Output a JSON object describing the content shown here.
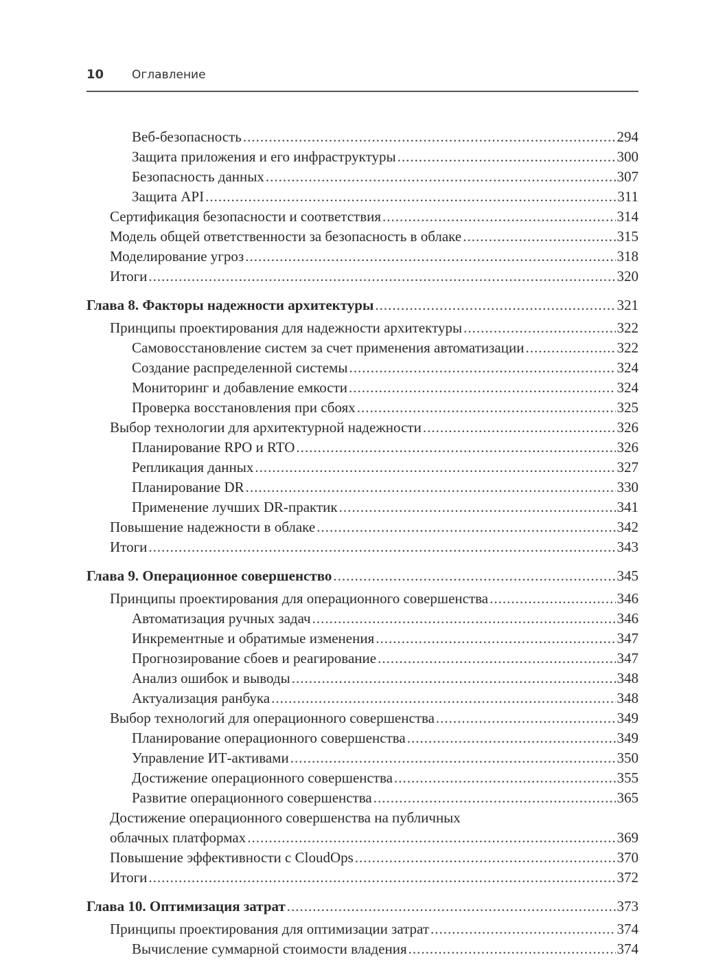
{
  "header": {
    "page_number": "10",
    "title": "Оглавление"
  },
  "entries": [
    {
      "level": 2,
      "title": "Веб-безопасность",
      "page": "294"
    },
    {
      "level": 2,
      "title": "Защита приложения и его инфраструктуры",
      "page": "300"
    },
    {
      "level": 2,
      "title": "Безопасность данных",
      "page": "307"
    },
    {
      "level": 2,
      "title": "Защита API",
      "page": "311"
    },
    {
      "level": 1,
      "title": "Сертификация безопасности и соответствия",
      "page": "314"
    },
    {
      "level": 1,
      "title": "Модель общей ответственности за безопасность в облаке",
      "page": "315"
    },
    {
      "level": 1,
      "title": "Моделирование угроз",
      "page": "318"
    },
    {
      "level": 1,
      "title": "Итоги",
      "page": "320"
    },
    {
      "level": 0,
      "title": "Глава 8. Факторы надежности архитектуры",
      "page": "321"
    },
    {
      "level": 1,
      "title": "Принципы проектирования для надежности архитектуры",
      "page": "322"
    },
    {
      "level": 2,
      "title": "Самовосстановление систем за счет применения автоматизации",
      "page": "322"
    },
    {
      "level": 2,
      "title": "Создание распределенной системы",
      "page": "324"
    },
    {
      "level": 2,
      "title": "Мониторинг и добавление емкости",
      "page": "324"
    },
    {
      "level": 2,
      "title": "Проверка восстановления при сбоях",
      "page": "325"
    },
    {
      "level": 1,
      "title": "Выбор технологии для архитектурной надежности",
      "page": "326"
    },
    {
      "level": 2,
      "title": "Планирование RPO и RTO",
      "page": "326"
    },
    {
      "level": 2,
      "title": "Репликация данных",
      "page": "327"
    },
    {
      "level": 2,
      "title": "Планирование DR",
      "page": "330"
    },
    {
      "level": 2,
      "title": "Применение лучших DR-практик",
      "page": "341"
    },
    {
      "level": 1,
      "title": "Повышение надежности в облаке",
      "page": "342"
    },
    {
      "level": 1,
      "title": "Итоги",
      "page": "343"
    },
    {
      "level": 0,
      "title": "Глава 9. Операционное совершенство",
      "page": "345"
    },
    {
      "level": 1,
      "title": "Принципы проектирования для операционного совершенства",
      "page": "346"
    },
    {
      "level": 2,
      "title": "Автоматизация ручных задач",
      "page": "346"
    },
    {
      "level": 2,
      "title": "Инкрементные и обратимые изменения",
      "page": "347"
    },
    {
      "level": 2,
      "title": "Прогнозирование сбоев и реагирование",
      "page": "347"
    },
    {
      "level": 2,
      "title": "Анализ ошибок и выводы",
      "page": "348"
    },
    {
      "level": 2,
      "title": "Актуализация ранбука",
      "page": "348"
    },
    {
      "level": 1,
      "title": "Выбор технологий для операционного совершенства",
      "page": "349"
    },
    {
      "level": 2,
      "title": "Планирование операционного совершенства",
      "page": "349"
    },
    {
      "level": 2,
      "title": "Управление ИТ-активами",
      "page": "350"
    },
    {
      "level": 2,
      "title": "Достижение операционного совершенства",
      "page": "355"
    },
    {
      "level": 2,
      "title": "Развитие операционного совершенства",
      "page": "365"
    },
    {
      "level": 1,
      "title_lines": [
        "Достижение операционного совершенства на публичных",
        "облачных платформах"
      ],
      "page": "369"
    },
    {
      "level": 1,
      "title": "Повышение эффективности с CloudOps",
      "page": "370"
    },
    {
      "level": 1,
      "title": "Итоги",
      "page": "372"
    },
    {
      "level": 0,
      "title": "Глава 10. Оптимизация затрат",
      "page": "373"
    },
    {
      "level": 1,
      "title": "Принципы проектирования для оптимизации затрат",
      "page": "374"
    },
    {
      "level": 2,
      "title": "Вычисление суммарной стоимости владения",
      "page": "374"
    }
  ]
}
